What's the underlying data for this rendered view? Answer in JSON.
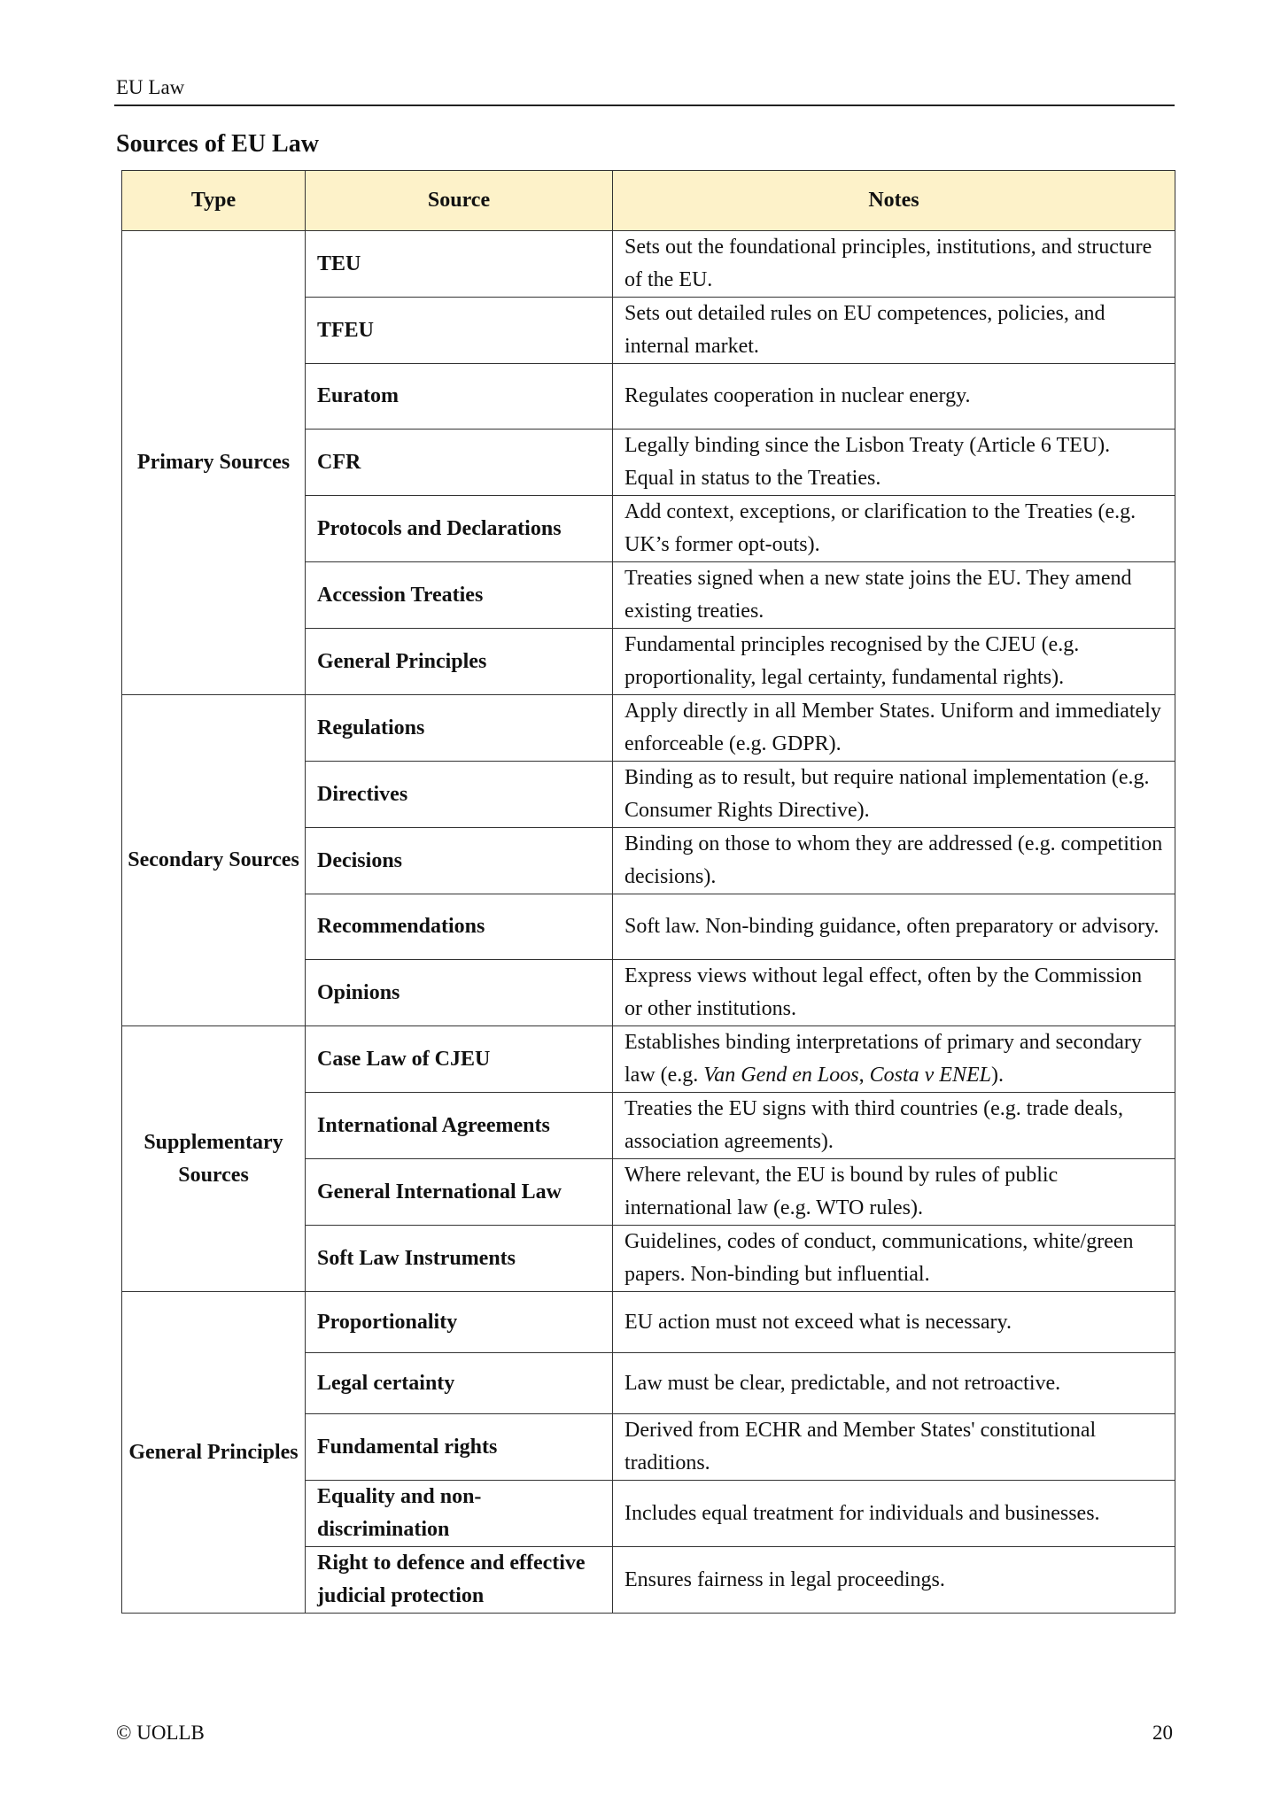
{
  "header": {
    "running_title": "EU Law"
  },
  "section_title": "Sources of EU Law",
  "table": {
    "columns": [
      "Type",
      "Source",
      "Notes"
    ],
    "header_bg": "#fdf2c9",
    "groups": [
      {
        "type": "Primary Sources",
        "rows": [
          {
            "source": "TEU",
            "notes": "Sets out the foundational principles, institutions, and structure of the EU."
          },
          {
            "source": "TFEU",
            "notes": "Sets out detailed rules on EU competences, policies, and internal market."
          },
          {
            "source": "Euratom",
            "notes": "Regulates cooperation in nuclear energy."
          },
          {
            "source": "CFR",
            "notes": "Legally binding since the Lisbon Treaty (Article 6 TEU). Equal in status to the Treaties."
          },
          {
            "source": "Protocols and Declarations",
            "notes": "Add context, exceptions, or clarification to the Treaties (e.g. UK’s former opt-outs)."
          },
          {
            "source": "Accession Treaties",
            "notes": "Treaties signed when a new state joins the EU. They amend existing treaties."
          },
          {
            "source": "General Principles",
            "notes": "Fundamental principles recognised by the CJEU (e.g. proportionality, legal certainty, fundamental rights)."
          }
        ]
      },
      {
        "type": "Secondary Sources",
        "rows": [
          {
            "source": "Regulations",
            "notes": "Apply directly in all Member States. Uniform and immediately enforceable (e.g. GDPR)."
          },
          {
            "source": "Directives",
            "notes": "Binding as to result, but require national implementation (e.g. Consumer Rights Directive)."
          },
          {
            "source": "Decisions",
            "notes": "Binding on those to whom they are addressed (e.g. competition decisions)."
          },
          {
            "source": "Recommendations",
            "notes": "Soft law. Non-binding guidance, often preparatory or advisory."
          },
          {
            "source": "Opinions",
            "notes": "Express views without legal effect, often by the Commission or other institutions."
          }
        ]
      },
      {
        "type": "Supplementary Sources",
        "rows": [
          {
            "source": "Case Law of CJEU",
            "notes_parts": [
              {
                "text": "Establishes binding interpretations of primary and secondary law (e.g. ",
                "italic": false
              },
              {
                "text": "Van Gend en Loos",
                "italic": true
              },
              {
                "text": ", ",
                "italic": false
              },
              {
                "text": "Costa v ENEL",
                "italic": true
              },
              {
                "text": ").",
                "italic": false
              }
            ]
          },
          {
            "source": "International Agreements",
            "notes": "Treaties the EU signs with third countries (e.g. trade deals, association agreements)."
          },
          {
            "source": "General International Law",
            "notes": "Where relevant, the EU is bound by rules of public international law (e.g. WTO rules)."
          },
          {
            "source": "Soft Law Instruments",
            "notes": "Guidelines, codes of conduct, communications, white/green papers. Non-binding but influential."
          }
        ]
      },
      {
        "type": "General Principles",
        "rows": [
          {
            "source": "Proportionality",
            "notes": "EU action must not exceed what is necessary."
          },
          {
            "source": "Legal certainty",
            "notes": "Law must be clear, predictable, and not retroactive."
          },
          {
            "source": "Fundamental rights",
            "notes": "Derived from ECHR and Member States' constitutional traditions."
          },
          {
            "source": "Equality and non-discrimination",
            "notes": "Includes equal treatment for individuals and businesses."
          },
          {
            "source": "Right to defence and effective judicial protection",
            "notes": "Ensures fairness in legal proceedings."
          }
        ]
      }
    ]
  },
  "footer": {
    "copyright": "© UOLLB",
    "page_number": "20"
  }
}
